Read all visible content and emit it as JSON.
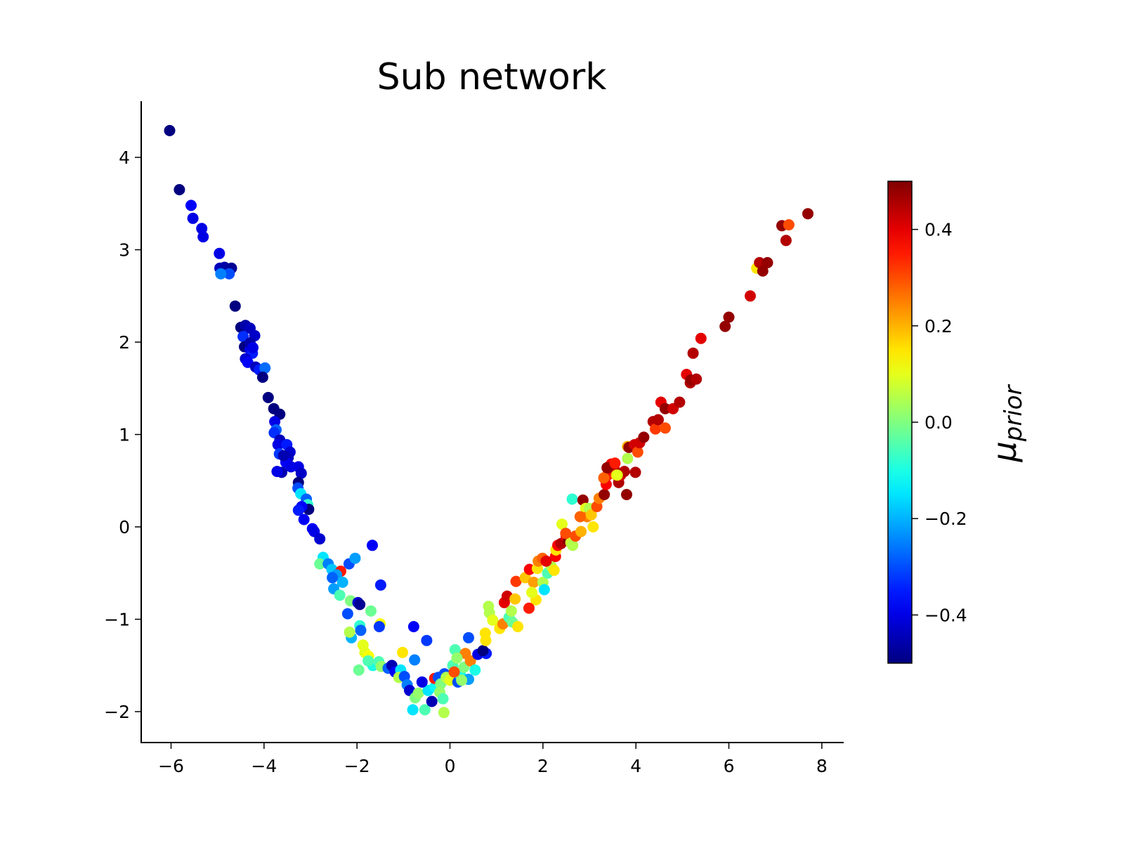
{
  "chart_data": {
    "type": "scatter",
    "title": "Sub network",
    "xlabel": "",
    "ylabel": "",
    "xlim": [
      -6.7,
      8.35
    ],
    "ylim": [
      -2.3,
      4.6
    ],
    "xticks": [
      -6,
      -4,
      -2,
      0,
      2,
      4,
      6,
      8
    ],
    "xtick_labels": [
      "−6",
      "−4",
      "−2",
      "0",
      "2",
      "4",
      "6",
      "8"
    ],
    "yticks": [
      -2,
      -1,
      0,
      1,
      2,
      3,
      4
    ],
    "ytick_labels": [
      "−2",
      "−1",
      "0",
      "1",
      "2",
      "3",
      "4"
    ],
    "grid": false,
    "colormap": "jet",
    "colorbar": {
      "label": "μprior",
      "label_main": "μ",
      "label_sub": "prior",
      "range": [
        -0.5,
        0.5
      ],
      "ticks": [
        -0.4,
        -0.2,
        0.0,
        0.2,
        0.4
      ],
      "tick_labels": [
        "−0.4",
        "−0.2",
        "0.0",
        "0.2",
        "0.4"
      ]
    },
    "points": [
      [
        -6.03,
        4.29,
        -0.5
      ],
      [
        -5.82,
        3.65,
        -0.5
      ],
      [
        -5.57,
        3.48,
        -0.38
      ],
      [
        -5.53,
        3.34,
        -0.4
      ],
      [
        -5.34,
        3.23,
        -0.4
      ],
      [
        -5.31,
        3.14,
        -0.4
      ],
      [
        -4.96,
        2.96,
        -0.4
      ],
      [
        -4.95,
        2.8,
        -0.44
      ],
      [
        -4.85,
        2.81,
        -0.46
      ],
      [
        -4.7,
        2.8,
        -0.48
      ],
      [
        -4.75,
        2.74,
        -0.3
      ],
      [
        -4.93,
        2.74,
        -0.25
      ],
      [
        -4.62,
        2.39,
        -0.5
      ],
      [
        -4.5,
        2.16,
        -0.5
      ],
      [
        -4.4,
        2.18,
        -0.46
      ],
      [
        -4.3,
        2.15,
        -0.44
      ],
      [
        -4.45,
        2.06,
        -0.33
      ],
      [
        -4.2,
        2.07,
        -0.43
      ],
      [
        -4.42,
        1.95,
        -0.5
      ],
      [
        -4.3,
        1.92,
        -0.4
      ],
      [
        -4.25,
        1.88,
        -0.35
      ],
      [
        -4.4,
        1.82,
        -0.42
      ],
      [
        -4.35,
        1.78,
        -0.38
      ],
      [
        -4.18,
        1.73,
        -0.44
      ],
      [
        -4.1,
        1.7,
        -0.35
      ],
      [
        -3.98,
        1.72,
        -0.27
      ],
      [
        -4.03,
        1.62,
        -0.5
      ],
      [
        -3.91,
        1.4,
        -0.5
      ],
      [
        -3.79,
        1.28,
        -0.5
      ],
      [
        -3.66,
        1.22,
        -0.5
      ],
      [
        -3.77,
        1.14,
        -0.4
      ],
      [
        -3.74,
        1.05,
        -0.28
      ],
      [
        -3.78,
        1.02,
        -0.33
      ],
      [
        -3.66,
        0.94,
        -0.44
      ],
      [
        -3.7,
        0.89,
        -0.4
      ],
      [
        -3.51,
        0.89,
        -0.35
      ],
      [
        -3.44,
        0.81,
        -0.42
      ],
      [
        -3.48,
        0.75,
        -0.44
      ],
      [
        -3.67,
        0.79,
        -0.32
      ],
      [
        -3.53,
        0.7,
        -0.38
      ],
      [
        -3.42,
        0.65,
        -0.4
      ],
      [
        -3.26,
        0.65,
        -0.4
      ],
      [
        -3.2,
        0.58,
        -0.43
      ],
      [
        -3.62,
        0.59,
        -0.45
      ],
      [
        -3.26,
        0.48,
        -0.5
      ],
      [
        -3.27,
        0.42,
        -0.3
      ],
      [
        -3.21,
        0.36,
        -0.15
      ],
      [
        -3.09,
        0.3,
        -0.28
      ],
      [
        -3.06,
        0.24,
        -0.08
      ],
      [
        -3.04,
        0.19,
        -0.5
      ],
      [
        -3.19,
        0.22,
        -0.38
      ],
      [
        -3.26,
        0.18,
        -0.35
      ],
      [
        -3.14,
        0.08,
        -0.38
      ],
      [
        -2.96,
        -0.02,
        -0.38
      ],
      [
        -2.92,
        -0.05,
        -0.4
      ],
      [
        -2.8,
        -0.13,
        -0.42
      ],
      [
        -2.73,
        -0.33,
        -0.15
      ],
      [
        -2.8,
        -0.4,
        -0.02
      ],
      [
        -2.62,
        -0.4,
        -0.25
      ],
      [
        -2.54,
        -0.46,
        -0.18
      ],
      [
        -2.35,
        -0.48,
        0.35
      ],
      [
        -2.17,
        -0.4,
        -0.3
      ],
      [
        -2.04,
        -0.34,
        -0.22
      ],
      [
        -1.67,
        -0.2,
        -0.38
      ],
      [
        -2.44,
        -0.52,
        -0.22
      ],
      [
        -2.53,
        -0.55,
        -0.28
      ],
      [
        -2.31,
        -0.6,
        -0.2
      ],
      [
        -2.5,
        -0.67,
        -0.22
      ],
      [
        -2.37,
        -0.74,
        -0.05
      ],
      [
        -2.14,
        -0.8,
        0.0
      ],
      [
        -1.98,
        -0.82,
        -0.42
      ],
      [
        -1.94,
        -0.84,
        -0.48
      ],
      [
        -1.49,
        -0.63,
        -0.35
      ],
      [
        -2.2,
        -0.94,
        -0.3
      ],
      [
        -1.7,
        -0.91,
        -0.02
      ],
      [
        -1.5,
        -1.05,
        0.12
      ],
      [
        -1.52,
        -1.08,
        -0.32
      ],
      [
        -1.94,
        -1.07,
        -0.08
      ],
      [
        -2.12,
        -1.2,
        -0.2
      ],
      [
        -2.16,
        -1.14,
        0.05
      ],
      [
        -1.92,
        -1.12,
        -0.28
      ],
      [
        -1.87,
        -1.28,
        0.1
      ],
      [
        -1.83,
        -1.36,
        0.1
      ],
      [
        -1.75,
        -1.4,
        0.12
      ],
      [
        -1.96,
        -1.55,
        -0.02
      ],
      [
        -1.66,
        -1.5,
        -0.1
      ],
      [
        -1.53,
        -1.46,
        -0.05
      ],
      [
        -1.48,
        -1.51,
        0.02
      ],
      [
        -1.33,
        -1.53,
        -0.28
      ],
      [
        -1.25,
        -1.5,
        -0.45
      ],
      [
        -1.18,
        -1.57,
        -0.38
      ],
      [
        -1.06,
        -1.55,
        -0.15
      ],
      [
        -1.1,
        -1.63,
        0.05
      ],
      [
        -0.98,
        -1.62,
        -0.3
      ],
      [
        -0.92,
        -1.71,
        -0.25
      ],
      [
        -0.87,
        -1.77,
        -0.42
      ],
      [
        -0.8,
        -1.98,
        -0.15
      ],
      [
        -0.75,
        -1.85,
        0.0
      ],
      [
        -0.54,
        -1.98,
        -0.05
      ],
      [
        -0.68,
        -1.8,
        0.02
      ],
      [
        -0.47,
        -1.77,
        -0.15
      ],
      [
        -0.39,
        -1.89,
        -0.45
      ],
      [
        -0.32,
        -1.73,
        -0.12
      ],
      [
        -0.33,
        -1.64,
        0.35
      ],
      [
        -0.25,
        -1.63,
        -0.3
      ],
      [
        -0.2,
        -1.7,
        0.0
      ],
      [
        -0.12,
        -1.59,
        -0.3
      ],
      [
        -0.22,
        -1.79,
        0.02
      ],
      [
        -0.15,
        -1.86,
        -0.05
      ],
      [
        -0.13,
        -2.01,
        0.05
      ],
      [
        -0.08,
        -1.63,
        0.05
      ],
      [
        0.0,
        -1.66,
        0.1
      ],
      [
        0.06,
        -1.5,
        -0.05
      ],
      [
        0.11,
        -1.33,
        -0.05
      ],
      [
        0.17,
        -1.68,
        -0.3
      ],
      [
        0.23,
        -1.61,
        -0.1
      ],
      [
        0.3,
        -1.52,
        0.0
      ],
      [
        0.33,
        -1.37,
        0.25
      ],
      [
        0.4,
        -1.65,
        -0.22
      ],
      [
        0.4,
        -1.2,
        -0.3
      ],
      [
        0.44,
        -1.45,
        0.25
      ],
      [
        0.54,
        -1.55,
        -0.1
      ],
      [
        0.6,
        -1.38,
        -0.4
      ],
      [
        0.78,
        -1.37,
        -0.35
      ],
      [
        0.71,
        -1.34,
        -0.5
      ],
      [
        0.77,
        -1.23,
        0.15
      ],
      [
        0.76,
        -1.15,
        0.15
      ],
      [
        0.85,
        -0.93,
        0.05
      ],
      [
        0.83,
        -0.86,
        0.05
      ],
      [
        0.92,
        -1.01,
        0.1
      ],
      [
        1.07,
        -1.1,
        0.15
      ],
      [
        1.14,
        -1.05,
        0.25
      ],
      [
        1.17,
        -0.82,
        0.4
      ],
      [
        1.23,
        -0.75,
        0.42
      ],
      [
        1.27,
        -0.98,
        -0.05
      ],
      [
        1.34,
        -1.03,
        -0.02
      ],
      [
        1.32,
        -0.91,
        0.05
      ],
      [
        1.4,
        -0.78,
        0.18
      ],
      [
        1.46,
        -1.08,
        0.15
      ],
      [
        1.42,
        -0.59,
        0.32
      ],
      [
        1.62,
        -0.55,
        0.18
      ],
      [
        1.71,
        -0.46,
        0.38
      ],
      [
        1.8,
        -0.6,
        0.22
      ],
      [
        1.85,
        -0.79,
        0.15
      ],
      [
        1.7,
        -0.88,
        0.35
      ],
      [
        1.88,
        -0.45,
        0.15
      ],
      [
        1.9,
        -0.37,
        0.25
      ],
      [
        1.99,
        -0.34,
        0.28
      ],
      [
        2.0,
        -0.6,
        0.05
      ],
      [
        2.03,
        -0.68,
        -0.15
      ],
      [
        2.1,
        -0.5,
        -0.05
      ],
      [
        2.18,
        -0.43,
        0.05
      ],
      [
        2.24,
        -0.47,
        0.15
      ],
      [
        2.27,
        -0.32,
        0.38
      ],
      [
        2.28,
        -0.25,
        0.15
      ],
      [
        2.32,
        -0.2,
        0.38
      ],
      [
        2.39,
        -0.18,
        0.45
      ],
      [
        2.41,
        0.03,
        0.1
      ],
      [
        2.5,
        -0.1,
        0.38
      ],
      [
        2.55,
        -0.15,
        0.5
      ],
      [
        2.6,
        -0.17,
        0.08
      ],
      [
        2.63,
        0.3,
        -0.08
      ],
      [
        2.64,
        -0.2,
        0.05
      ],
      [
        2.7,
        -0.1,
        0.3
      ],
      [
        2.86,
        0.29,
        0.48
      ],
      [
        2.92,
        0.2,
        0.1
      ],
      [
        2.95,
        0.11,
        0.25
      ],
      [
        3.0,
        0.2,
        0.05
      ],
      [
        3.04,
        0.13,
        0.18
      ],
      [
        3.08,
        0.0,
        0.15
      ],
      [
        3.16,
        0.22,
        0.3
      ],
      [
        3.21,
        0.31,
        0.25
      ],
      [
        3.32,
        0.35,
        0.48
      ],
      [
        3.36,
        0.46,
        0.38
      ],
      [
        3.39,
        0.56,
        0.35
      ],
      [
        3.42,
        0.62,
        0.4
      ],
      [
        3.47,
        0.68,
        0.38
      ],
      [
        3.53,
        0.63,
        0.45
      ],
      [
        3.58,
        0.56,
        0.2
      ],
      [
        3.63,
        0.48,
        0.45
      ],
      [
        3.67,
        0.56,
        0.42
      ],
      [
        3.75,
        0.6,
        0.45
      ],
      [
        3.82,
        0.74,
        0.05
      ],
      [
        3.82,
        0.87,
        0.2
      ],
      [
        3.85,
        0.86,
        0.48
      ],
      [
        3.97,
        0.89,
        0.42
      ],
      [
        3.99,
        0.59,
        0.45
      ],
      [
        4.04,
        0.81,
        0.3
      ],
      [
        4.08,
        0.91,
        0.42
      ],
      [
        4.17,
        0.97,
        0.48
      ],
      [
        4.37,
        1.14,
        0.45
      ],
      [
        4.42,
        1.06,
        0.32
      ],
      [
        4.48,
        1.16,
        0.45
      ],
      [
        4.54,
        1.35,
        0.4
      ],
      [
        4.63,
        1.07,
        0.3
      ],
      [
        4.63,
        1.28,
        0.48
      ],
      [
        4.8,
        1.28,
        0.42
      ],
      [
        4.94,
        1.35,
        0.45
      ],
      [
        5.09,
        1.65,
        0.4
      ],
      [
        5.17,
        1.56,
        0.45
      ],
      [
        5.18,
        1.59,
        0.48
      ],
      [
        5.3,
        1.6,
        0.45
      ],
      [
        5.23,
        1.88,
        0.45
      ],
      [
        5.4,
        2.04,
        0.4
      ],
      [
        5.92,
        2.17,
        0.48
      ],
      [
        6.0,
        2.27,
        0.48
      ],
      [
        6.46,
        2.5,
        0.42
      ],
      [
        6.6,
        2.8,
        0.15
      ],
      [
        6.66,
        2.86,
        0.45
      ],
      [
        6.73,
        2.77,
        0.48
      ],
      [
        6.83,
        2.86,
        0.48
      ],
      [
        7.14,
        3.26,
        0.48
      ],
      [
        7.23,
        3.1,
        0.45
      ],
      [
        7.29,
        3.27,
        0.3
      ],
      [
        7.7,
        3.39,
        0.48
      ],
      [
        3.6,
        0.56,
        0.1
      ],
      [
        3.31,
        0.53,
        0.28
      ],
      [
        -1.76,
        -1.45,
        -0.05
      ],
      [
        -0.6,
        -1.68,
        -0.4
      ],
      [
        0.25,
        -1.66,
        0.02
      ],
      [
        -0.78,
        -1.08,
        -0.38
      ],
      [
        -0.5,
        -1.23,
        -0.32
      ],
      [
        -1.02,
        -1.36,
        0.15
      ],
      [
        -0.76,
        -1.44,
        -0.25
      ],
      [
        0.09,
        -1.57,
        0.3
      ],
      [
        0.15,
        -1.42,
        0.02
      ],
      [
        2.07,
        -0.37,
        0.4
      ],
      [
        2.49,
        -0.07,
        0.3
      ],
      [
        1.76,
        -0.71,
        0.1
      ],
      [
        2.8,
        0.11,
        0.28
      ],
      [
        2.82,
        -0.05,
        0.2
      ],
      [
        3.38,
        0.64,
        0.48
      ],
      [
        3.55,
        0.69,
        0.35
      ],
      [
        3.8,
        0.35,
        0.48
      ],
      [
        -4.3,
        1.99,
        -0.46
      ],
      [
        -4.24,
        1.94,
        -0.4
      ],
      [
        -3.58,
        0.77,
        -0.45
      ],
      [
        -3.72,
        0.6,
        -0.4
      ]
    ]
  }
}
